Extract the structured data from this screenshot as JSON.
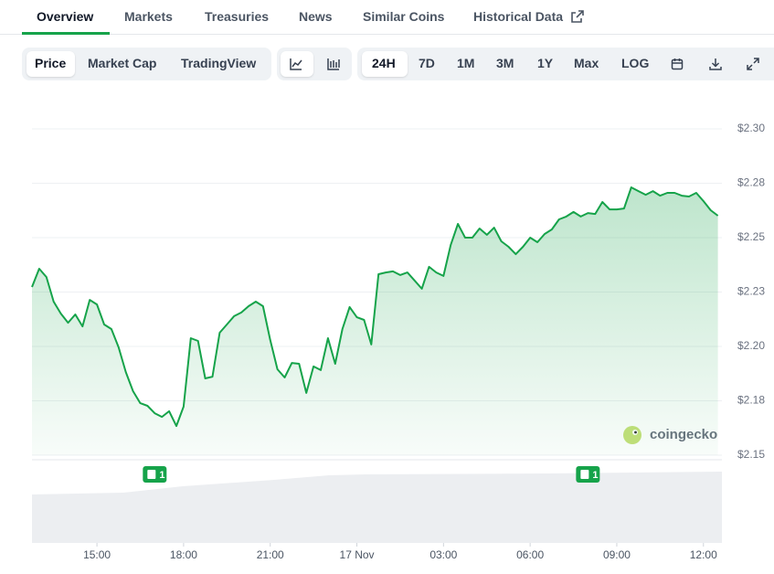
{
  "tabs": [
    "Overview",
    "Markets",
    "Treasuries",
    "News",
    "Similar Coins",
    "Historical Data"
  ],
  "toolbar": {
    "views": [
      "Price",
      "Market Cap",
      "TradingView"
    ],
    "ranges": [
      "24H",
      "7D",
      "1M",
      "3M",
      "1Y",
      "Max",
      "LOG"
    ]
  },
  "watermark": "coingecko",
  "chart_data": {
    "type": "area",
    "color": "#16a34a",
    "grid": true,
    "x": [
      12.75,
      13,
      13.25,
      13.5,
      13.75,
      14,
      14.25,
      14.5,
      14.75,
      15,
      15.25,
      15.5,
      15.75,
      16,
      16.25,
      16.5,
      16.75,
      17,
      17.25,
      17.5,
      17.75,
      18,
      18.25,
      18.5,
      18.75,
      19,
      19.25,
      19.5,
      19.75,
      20,
      20.25,
      20.5,
      20.75,
      21,
      21.25,
      21.5,
      21.75,
      22,
      22.25,
      22.5,
      22.75,
      23,
      23.25,
      23.5,
      23.75,
      24,
      24.25,
      24.5,
      24.75,
      25,
      25.25,
      25.5,
      25.75,
      26,
      26.25,
      26.5,
      26.75,
      27,
      27.25,
      27.5,
      27.75,
      28,
      28.25,
      28.5,
      28.75,
      29,
      29.25,
      29.5,
      29.75,
      30,
      30.25,
      30.5,
      30.75,
      31,
      31.25,
      31.5,
      31.75,
      32,
      32.25,
      32.5,
      32.75,
      33,
      33.25,
      33.5,
      33.75,
      34,
      34.25,
      34.5,
      34.75,
      35,
      35.25,
      35.5,
      35.75,
      36,
      36.25,
      36.5
    ],
    "values": [
      2.2273,
      2.2357,
      2.2319,
      2.2206,
      2.2151,
      2.2109,
      2.2147,
      2.2092,
      2.2214,
      2.2193,
      2.2101,
      2.208,
      2.1996,
      2.1882,
      2.1794,
      2.1739,
      2.1727,
      2.1693,
      2.1676,
      2.1702,
      2.1634,
      2.1723,
      2.2038,
      2.2025,
      2.1853,
      2.1861,
      2.2063,
      2.2101,
      2.2139,
      2.2156,
      2.2185,
      2.2206,
      2.2185,
      2.203,
      2.1895,
      2.1857,
      2.1924,
      2.192,
      2.1786,
      2.1908,
      2.1891,
      2.2038,
      2.192,
      2.208,
      2.2181,
      2.2134,
      2.2122,
      2.2009,
      2.2332,
      2.234,
      2.2345,
      2.2328,
      2.234,
      2.2303,
      2.2265,
      2.2366,
      2.234,
      2.2324,
      2.2466,
      2.2563,
      2.25,
      2.25,
      2.2542,
      2.2513,
      2.2546,
      2.2483,
      2.2458,
      2.2424,
      2.2458,
      2.25,
      2.2479,
      2.2517,
      2.2538,
      2.2584,
      2.2597,
      2.2618,
      2.2597,
      2.2613,
      2.2609,
      2.2664,
      2.263,
      2.263,
      2.2634,
      2.2731,
      2.2714,
      2.2697,
      2.2714,
      2.2693,
      2.2706,
      2.2706,
      2.2693,
      2.2689,
      2.2706,
      2.2668,
      2.2626,
      2.2601
    ],
    "xlim": [
      12.75,
      36.64
    ],
    "ylim": [
      2.15,
      2.3
    ],
    "xticks": [
      {
        "value": 15,
        "label": "15:00"
      },
      {
        "value": 18,
        "label": "18:00"
      },
      {
        "value": 21,
        "label": "21:00"
      },
      {
        "value": 24,
        "label": "17 Nov"
      },
      {
        "value": 27,
        "label": "03:00"
      },
      {
        "value": 30,
        "label": "06:00"
      },
      {
        "value": 33,
        "label": "09:00"
      },
      {
        "value": 36,
        "label": "12:00"
      }
    ],
    "yticks": [
      {
        "value": 2.3,
        "label": "$2.30"
      },
      {
        "value": 2.275,
        "label": "$2.28"
      },
      {
        "value": 2.25,
        "label": "$2.25"
      },
      {
        "value": 2.225,
        "label": "$2.23"
      },
      {
        "value": 2.2,
        "label": "$2.20"
      },
      {
        "value": 2.175,
        "label": "$2.18"
      },
      {
        "value": 2.15,
        "label": "$2.15"
      }
    ],
    "annotations": [
      {
        "x": 17,
        "text": "1"
      },
      {
        "x": 32,
        "text": "1"
      }
    ]
  }
}
